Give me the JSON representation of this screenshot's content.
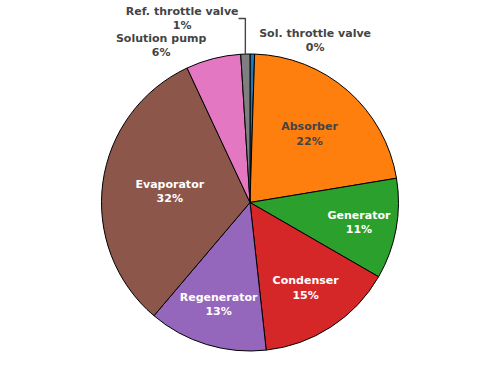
{
  "chart_data": {
    "type": "pie",
    "categories": [
      "Sol. throttle valve",
      "Absorber",
      "Generator",
      "Condenser",
      "Regenerator",
      "Evaporator",
      "Solution pump",
      "Ref. throttle valve"
    ],
    "values": [
      0.5,
      22,
      11,
      15,
      13,
      32,
      6,
      1
    ],
    "value_labels": [
      "0%",
      "22%",
      "11%",
      "15%",
      "13%",
      "32%",
      "6%",
      "1%"
    ],
    "data_labels": true
  }
}
